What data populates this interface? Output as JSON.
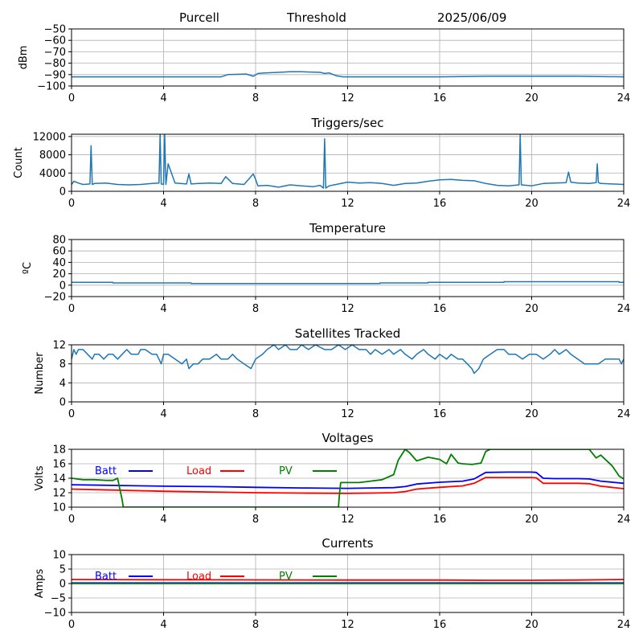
{
  "header": {
    "station": "Purcell",
    "metric": "Threshold",
    "date": "2025/06/09"
  },
  "colors": {
    "series_default": "#1f77b4",
    "batt": "#0000ff",
    "load": "#ff0000",
    "pv": "#008000",
    "grid": "#b0b0b0"
  },
  "chart_data": [
    {
      "id": "threshold",
      "type": "line",
      "title": "",
      "xlabel": "",
      "ylabel": "dBm",
      "xlim": [
        0,
        24
      ],
      "ylim": [
        -100,
        -50
      ],
      "xticks": [
        0,
        4,
        8,
        12,
        16,
        20,
        24
      ],
      "yticks": [
        -50,
        -60,
        -70,
        -80,
        -90,
        -100
      ],
      "grid": true,
      "series": [
        {
          "color": "#1f77b4",
          "x": [
            0,
            6.5,
            6.8,
            7.6,
            7.9,
            8.1,
            8.4,
            9.0,
            9.5,
            10.0,
            10.8,
            11.0,
            11.2,
            11.5,
            11.8,
            12.2,
            13.0,
            16.0,
            18.0,
            18.8,
            19.0,
            20.0,
            22.0,
            24.0
          ],
          "y": [
            -92,
            -92,
            -90,
            -89.5,
            -91.5,
            -89,
            -88.5,
            -88,
            -87.5,
            -87.5,
            -88,
            -89,
            -88.5,
            -91,
            -92,
            -92,
            -92,
            -92,
            -91.5,
            -91.5,
            -91.5,
            -91.5,
            -91.5,
            -92
          ]
        }
      ]
    },
    {
      "id": "triggers",
      "type": "line",
      "title": "Triggers/sec",
      "xlabel": "",
      "ylabel": "Count",
      "xlim": [
        0,
        24
      ],
      "ylim": [
        0,
        12500
      ],
      "xticks": [
        0,
        4,
        8,
        12,
        16,
        20,
        24
      ],
      "yticks": [
        0,
        4000,
        8000,
        12000
      ],
      "grid": true,
      "series": [
        {
          "color": "#1f77b4",
          "x": [
            0,
            0.1,
            0.3,
            0.5,
            0.8,
            0.85,
            0.9,
            1.0,
            1.5,
            2.0,
            2.5,
            3.0,
            3.5,
            3.8,
            3.85,
            3.9,
            4.0,
            4.05,
            4.1,
            4.2,
            4.5,
            5.0,
            5.1,
            5.2,
            5.5,
            6.0,
            6.5,
            6.7,
            7.0,
            7.5,
            7.9,
            8.0,
            8.1,
            8.5,
            9.0,
            9.5,
            10.0,
            10.5,
            10.8,
            10.95,
            11.0,
            11.05,
            11.2,
            11.5,
            12.0,
            12.5,
            13.0,
            13.5,
            14.0,
            14.5,
            15.0,
            15.5,
            16.0,
            16.5,
            17.0,
            17.5,
            18.0,
            18.5,
            19.0,
            19.45,
            19.5,
            19.55,
            19.8,
            20.0,
            20.5,
            21.0,
            21.5,
            21.6,
            21.7,
            22.0,
            22.5,
            22.8,
            22.85,
            22.9,
            23.0,
            23.5,
            24.0
          ],
          "y": [
            1500,
            2200,
            1800,
            1500,
            1600,
            10000,
            1500,
            1700,
            1800,
            1500,
            1400,
            1500,
            1700,
            1800,
            12500,
            1600,
            1500,
            12500,
            1500,
            6000,
            1800,
            1600,
            3800,
            1600,
            1700,
            1800,
            1700,
            3200,
            1700,
            1500,
            3800,
            2600,
            1200,
            1300,
            900,
            1400,
            1200,
            1000,
            1300,
            700,
            11500,
            700,
            1200,
            1500,
            2000,
            1800,
            1900,
            1700,
            1300,
            1700,
            1800,
            2200,
            2500,
            2600,
            2400,
            2300,
            1700,
            1300,
            1200,
            1400,
            12500,
            1400,
            1300,
            1200,
            1700,
            1800,
            1900,
            4200,
            2000,
            1800,
            1700,
            1900,
            6000,
            1900,
            1700,
            1600,
            1500
          ]
        }
      ]
    },
    {
      "id": "temperature",
      "type": "line",
      "title": "Temperature",
      "xlabel": "",
      "ylabel": "ºC",
      "xlim": [
        0,
        24
      ],
      "ylim": [
        -20,
        80
      ],
      "xticks": [
        0,
        4,
        8,
        12,
        16,
        20,
        24
      ],
      "yticks": [
        -20,
        0,
        20,
        40,
        60,
        80
      ],
      "grid": true,
      "series": [
        {
          "color": "#1f77b4",
          "x": [
            0,
            1.8,
            1.8,
            5.2,
            5.2,
            13.4,
            13.4,
            15.5,
            15.5,
            18.8,
            18.8,
            23.8,
            23.8,
            24
          ],
          "y": [
            5,
            5,
            4,
            4,
            3,
            3,
            4,
            4,
            5,
            5,
            6,
            6,
            5,
            5
          ]
        }
      ]
    },
    {
      "id": "satellites",
      "type": "line",
      "title": "Satellites Tracked",
      "xlabel": "",
      "ylabel": "Number",
      "xlim": [
        0,
        24
      ],
      "ylim": [
        0,
        12
      ],
      "xticks": [
        0,
        4,
        8,
        12,
        16,
        20,
        24
      ],
      "yticks": [
        0,
        4,
        8,
        12
      ],
      "grid": true,
      "series": [
        {
          "color": "#1f77b4",
          "x": [
            0,
            0.1,
            0.2,
            0.3,
            0.5,
            0.7,
            0.9,
            1.0,
            1.2,
            1.4,
            1.6,
            1.8,
            2.0,
            2.2,
            2.4,
            2.6,
            2.9,
            3.0,
            3.2,
            3.5,
            3.7,
            3.9,
            4.0,
            4.2,
            4.5,
            4.8,
            5.0,
            5.1,
            5.3,
            5.5,
            5.7,
            6.0,
            6.3,
            6.5,
            6.8,
            7.0,
            7.2,
            7.5,
            7.8,
            8.0,
            8.3,
            8.5,
            8.8,
            9.0,
            9.3,
            9.5,
            9.8,
            10.0,
            10.3,
            10.6,
            11.0,
            11.3,
            11.6,
            11.9,
            12.2,
            12.5,
            12.8,
            13.0,
            13.2,
            13.5,
            13.8,
            14.0,
            14.3,
            14.5,
            14.8,
            15.0,
            15.3,
            15.5,
            15.8,
            16.0,
            16.3,
            16.5,
            16.8,
            17.0,
            17.2,
            17.4,
            17.5,
            17.7,
            17.9,
            18.2,
            18.5,
            18.8,
            19.0,
            19.3,
            19.6,
            19.9,
            20.2,
            20.5,
            20.8,
            21.0,
            21.2,
            21.5,
            21.7,
            22.0,
            22.3,
            22.6,
            22.9,
            23.2,
            23.5,
            23.8,
            23.9,
            24.0
          ],
          "y": [
            9,
            11,
            10,
            11,
            11,
            10,
            9,
            10,
            10,
            9,
            10,
            10,
            9,
            10,
            11,
            10,
            10,
            11,
            11,
            10,
            10,
            8,
            10,
            10,
            9,
            8,
            9,
            7,
            8,
            8,
            9,
            9,
            10,
            9,
            9,
            10,
            9,
            8,
            7,
            9,
            10,
            11,
            12,
            11,
            12,
            11,
            11,
            12,
            11,
            12,
            11,
            11,
            12,
            11,
            12,
            11,
            11,
            10,
            11,
            10,
            11,
            10,
            11,
            10,
            9,
            10,
            11,
            10,
            9,
            10,
            9,
            10,
            9,
            9,
            8,
            7,
            6,
            7,
            9,
            10,
            11,
            11,
            10,
            10,
            9,
            10,
            10,
            9,
            10,
            11,
            10,
            11,
            10,
            9,
            8,
            8,
            8,
            9,
            9,
            9,
            8,
            9
          ]
        }
      ]
    },
    {
      "id": "voltages",
      "type": "line",
      "title": "Voltages",
      "xlabel": "",
      "ylabel": "Volts",
      "xlim": [
        0,
        24
      ],
      "ylim": [
        10,
        18
      ],
      "xticks": [
        0,
        4,
        8,
        12,
        16,
        20,
        24
      ],
      "yticks": [
        10,
        12,
        14,
        16,
        18
      ],
      "grid": true,
      "legend": "top-left, horizontal",
      "series": [
        {
          "name": "Batt",
          "color": "#0000ff",
          "x": [
            0,
            2,
            4,
            6,
            8,
            10,
            12,
            13,
            14,
            14.5,
            15,
            16,
            17,
            17.5,
            18,
            19,
            20,
            20.2,
            20.5,
            21,
            22,
            22.5,
            23,
            24
          ],
          "y": [
            13.1,
            13.0,
            12.9,
            12.85,
            12.75,
            12.65,
            12.6,
            12.65,
            12.7,
            12.85,
            13.2,
            13.45,
            13.6,
            13.9,
            14.8,
            14.85,
            14.85,
            14.8,
            14.0,
            13.95,
            13.95,
            13.9,
            13.6,
            13.3
          ]
        },
        {
          "name": "Load",
          "color": "#ff0000",
          "x": [
            0,
            2,
            4,
            6,
            8,
            10,
            12,
            13,
            14,
            14.5,
            15,
            16,
            17,
            17.5,
            18,
            19,
            20,
            20.2,
            20.5,
            21,
            22,
            22.5,
            23,
            24
          ],
          "y": [
            12.5,
            12.35,
            12.2,
            12.1,
            12.0,
            11.95,
            11.9,
            11.95,
            12.0,
            12.15,
            12.5,
            12.75,
            12.95,
            13.3,
            14.1,
            14.1,
            14.1,
            14.05,
            13.3,
            13.3,
            13.3,
            13.25,
            12.9,
            12.55
          ]
        },
        {
          "name": "PV",
          "color": "#008000",
          "x": [
            0,
            0.5,
            1.0,
            1.5,
            1.8,
            2.0,
            2.1,
            2.2,
            2.25,
            11.6,
            11.65,
            11.7,
            12.0,
            12.5,
            13.0,
            13.5,
            14.0,
            14.2,
            14.5,
            14.7,
            15.0,
            15.5,
            16.0,
            16.3,
            16.5,
            16.8,
            17.0,
            17.4,
            17.8,
            18.0,
            18.2,
            22.5,
            22.8,
            23.0,
            23.5,
            23.8,
            24.0
          ],
          "y": [
            14.0,
            13.8,
            13.8,
            13.7,
            13.7,
            14.0,
            12.5,
            11.0,
            10.0,
            10.0,
            12.0,
            13.4,
            13.4,
            13.4,
            13.6,
            13.8,
            14.5,
            16.5,
            18.0,
            17.5,
            16.4,
            16.9,
            16.6,
            16.0,
            17.3,
            16.1,
            16.0,
            15.9,
            16.1,
            17.7,
            18.0,
            18.0,
            16.8,
            17.2,
            15.7,
            14.3,
            13.9
          ]
        }
      ]
    },
    {
      "id": "currents",
      "type": "line",
      "title": "Currents",
      "xlabel": "",
      "ylabel": "Amps",
      "xlim": [
        0,
        24
      ],
      "ylim": [
        -10,
        10
      ],
      "xticks": [
        0,
        4,
        8,
        12,
        16,
        20,
        24
      ],
      "yticks": [
        -10,
        -5,
        0,
        5,
        10
      ],
      "grid": true,
      "legend": "top-left, horizontal",
      "series": [
        {
          "name": "Batt",
          "color": "#0000ff",
          "x": [
            0,
            24
          ],
          "y": [
            0.2,
            0.2
          ]
        },
        {
          "name": "Load",
          "color": "#ff0000",
          "x": [
            0,
            4,
            8,
            12,
            16,
            18,
            20,
            22,
            24
          ],
          "y": [
            1.4,
            1.3,
            1.25,
            1.2,
            1.2,
            1.1,
            1.1,
            1.2,
            1.4
          ]
        },
        {
          "name": "PV",
          "color": "#008000",
          "x": [
            0,
            24
          ],
          "y": [
            0.0,
            0.0
          ]
        }
      ]
    }
  ]
}
